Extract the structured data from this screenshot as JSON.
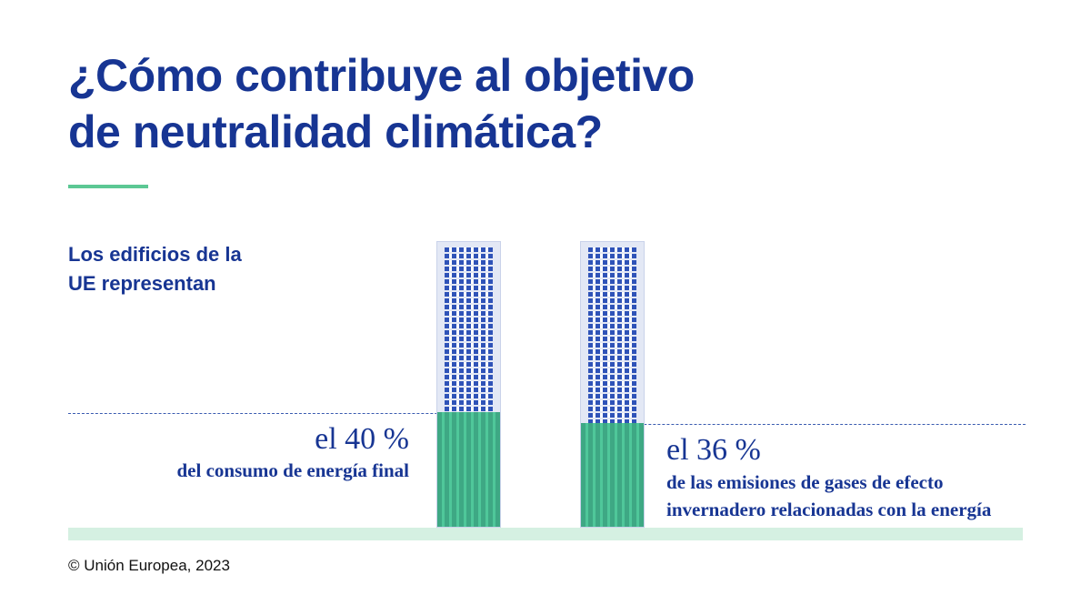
{
  "title_line1": "¿Cómo contribuye al objetivo",
  "title_line2": "de neutralidad climática?",
  "subtitle_line1": "Los edificios de la",
  "subtitle_line2": "UE representan",
  "stats": [
    {
      "value_label": "el 40 %",
      "description": "del consumo de energía final",
      "percent": 40
    },
    {
      "value_label": "el 36 %",
      "description_line1": "de las emisiones de gases de efecto",
      "description_line2": "invernadero relacionadas con la energía",
      "percent": 36
    }
  ],
  "copyright": "© Unión Europea, 2023",
  "colors": {
    "primary": "#173593",
    "accent": "#5cc894",
    "fill": "#4fc79a"
  }
}
